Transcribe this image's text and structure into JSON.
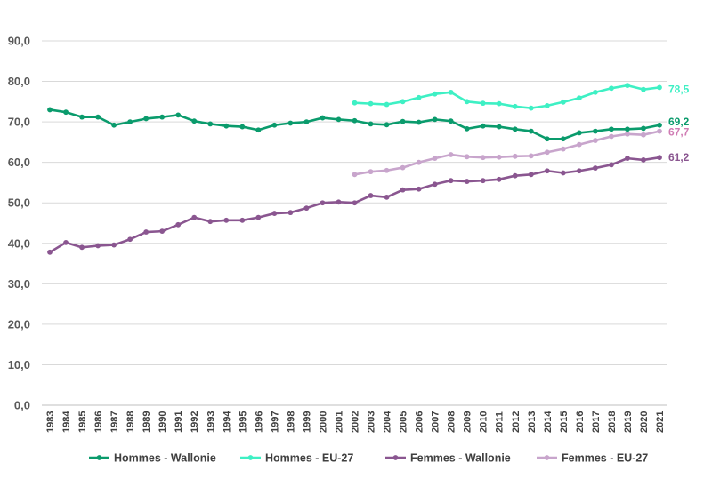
{
  "chart_data": {
    "type": "line",
    "title": "",
    "xlabel": "",
    "ylabel": "",
    "ylim": [
      0,
      90
    ],
    "yticks": [
      "0,0",
      "10,0",
      "20,0",
      "30,0",
      "40,0",
      "50,0",
      "60,0",
      "70,0",
      "80,0",
      "90,0"
    ],
    "grid": true,
    "legend_position": "bottom",
    "x": [
      "1983",
      "1984",
      "1985",
      "1986",
      "1987",
      "1988",
      "1989",
      "1990",
      "1991",
      "1992",
      "1993",
      "1994",
      "1995",
      "1996",
      "1997",
      "1998",
      "1999",
      "2000",
      "2001",
      "2002",
      "2003",
      "2004",
      "2005",
      "2006",
      "2007",
      "2008",
      "2009",
      "2010",
      "2011",
      "2012",
      "2013",
      "2014",
      "2015",
      "2016",
      "2017",
      "2018",
      "2019",
      "2020",
      "2021"
    ],
    "series": [
      {
        "name": "Hommes - Wallonie",
        "color": "#0a9b6c",
        "end_label": "69,2",
        "values": [
          73.0,
          72.4,
          71.2,
          71.2,
          69.2,
          70.0,
          70.8,
          71.2,
          71.7,
          70.2,
          69.5,
          69.0,
          68.8,
          68.0,
          69.2,
          69.7,
          70.0,
          71.0,
          70.6,
          70.3,
          69.5,
          69.3,
          70.1,
          69.9,
          70.6,
          70.2,
          68.3,
          69.0,
          68.8,
          68.2,
          67.7,
          65.8,
          65.8,
          67.3,
          67.7,
          68.2,
          68.2,
          68.4,
          69.2
        ]
      },
      {
        "name": "Hommes - EU-27",
        "color": "#3ef0c4",
        "end_label": "78,5",
        "values": [
          null,
          null,
          null,
          null,
          null,
          null,
          null,
          null,
          null,
          null,
          null,
          null,
          null,
          null,
          null,
          null,
          null,
          null,
          null,
          74.7,
          74.5,
          74.3,
          75.0,
          76.0,
          76.9,
          77.3,
          75.0,
          74.6,
          74.5,
          73.8,
          73.4,
          74.0,
          74.9,
          75.9,
          77.3,
          78.3,
          79.0,
          78.0,
          78.5
        ]
      },
      {
        "name": "Femmes - Wallonie",
        "color": "#8a5690",
        "end_label": "61,2",
        "values": [
          37.8,
          40.2,
          39.0,
          39.4,
          39.6,
          41.0,
          42.8,
          43.0,
          44.6,
          46.4,
          45.4,
          45.7,
          45.7,
          46.4,
          47.4,
          47.6,
          48.7,
          50.0,
          50.2,
          50.0,
          51.8,
          51.4,
          53.2,
          53.4,
          54.6,
          55.5,
          55.3,
          55.5,
          55.8,
          56.7,
          57.0,
          57.9,
          57.4,
          57.9,
          58.6,
          59.4,
          61.0,
          60.6,
          61.2
        ]
      },
      {
        "name": "Femmes - EU-27",
        "color": "#c8a5cc",
        "end_label": "67,7",
        "label_color": "#d07cb4",
        "values": [
          null,
          null,
          null,
          null,
          null,
          null,
          null,
          null,
          null,
          null,
          null,
          null,
          null,
          null,
          null,
          null,
          null,
          null,
          null,
          57.0,
          57.7,
          58.0,
          58.7,
          60.0,
          61.0,
          61.9,
          61.4,
          61.2,
          61.3,
          61.5,
          61.6,
          62.5,
          63.3,
          64.4,
          65.4,
          66.4,
          67.0,
          66.8,
          67.7
        ]
      }
    ]
  }
}
